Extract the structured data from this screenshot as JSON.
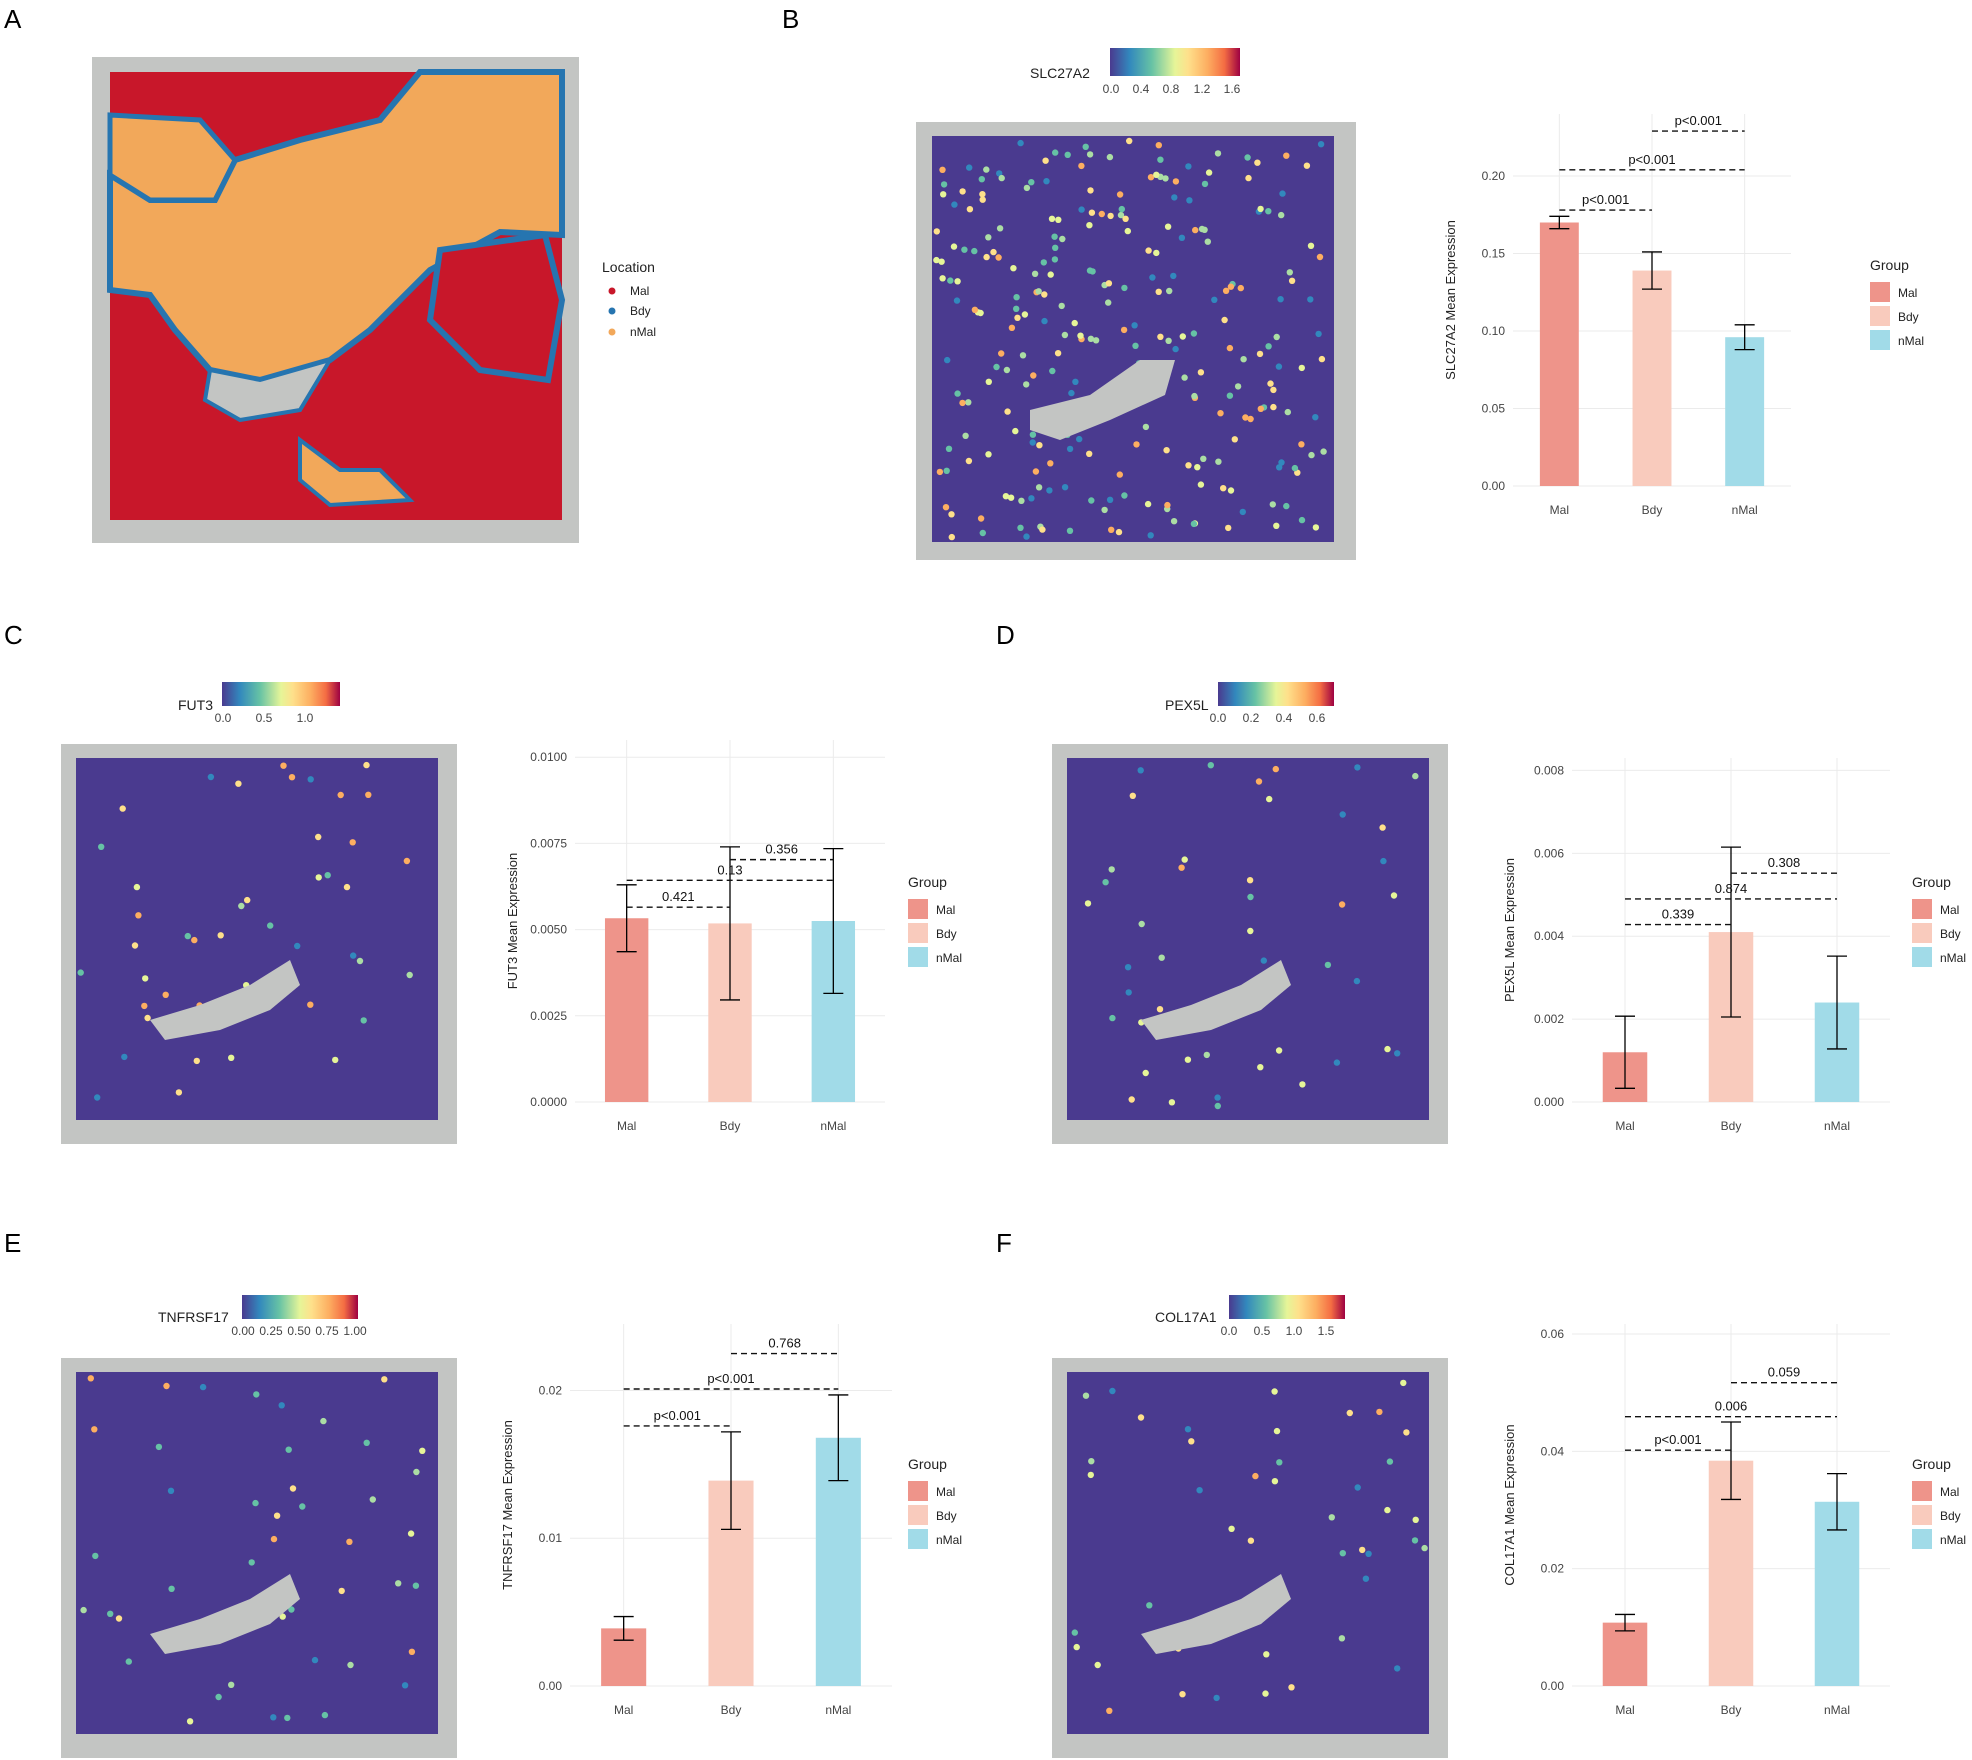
{
  "colors": {
    "Mal": "#ee948a",
    "Bdy": "#f9cbbd",
    "nMal": "#a1dbe8",
    "tissue_bg": "#c3c5c3",
    "spot_low": "#4a3a8f",
    "loc_Mal": "#c8172a",
    "loc_Bdy": "#2675b0",
    "loc_nMal": "#f2a85a"
  },
  "panels": {
    "A": {
      "letter": "A",
      "legend_title": "Location",
      "legend_items": [
        "Mal",
        "Bdy",
        "nMal"
      ]
    },
    "B": {
      "letter": "B",
      "gene": "SLC27A2",
      "colorbar_ticks": [
        "0.0",
        "0.4",
        "0.8",
        "1.2",
        "1.6"
      ]
    },
    "C": {
      "letter": "C",
      "gene": "FUT3",
      "colorbar_ticks": [
        "0.0",
        "0.5",
        "1.0"
      ]
    },
    "D": {
      "letter": "D",
      "gene": "PEX5L",
      "colorbar_ticks": [
        "0.0",
        "0.2",
        "0.4",
        "0.6"
      ]
    },
    "E": {
      "letter": "E",
      "gene": "TNFRSF17",
      "colorbar_ticks": [
        "0.00",
        "0.25",
        "0.50",
        "0.75",
        "1.00"
      ]
    },
    "F": {
      "letter": "F",
      "gene": "COL17A1",
      "colorbar_ticks": [
        "0.0",
        "0.5",
        "1.0",
        "1.5"
      ]
    }
  },
  "chart_data": [
    {
      "panel": "B",
      "type": "bar",
      "title": "",
      "xlabel": "",
      "ylabel": "SLC27A2 Mean Expression",
      "categories": [
        "Mal",
        "Bdy",
        "nMal"
      ],
      "values": [
        0.17,
        0.139,
        0.096
      ],
      "errors": [
        0.004,
        0.012,
        0.008
      ],
      "ylim": [
        0,
        0.24
      ],
      "yticks": [
        "0.00",
        "0.05",
        "0.10",
        "0.15",
        "0.20"
      ],
      "ytick_values": [
        0,
        0.05,
        0.1,
        0.15,
        0.2
      ],
      "legend_title": "Group",
      "comparisons": [
        {
          "from": 0,
          "to": 1,
          "y": 0.178,
          "label": "p<0.001"
        },
        {
          "from": 0,
          "to": 2,
          "y": 0.204,
          "label": "p<0.001"
        },
        {
          "from": 1,
          "to": 2,
          "y": 0.229,
          "label": "p<0.001"
        }
      ]
    },
    {
      "panel": "C",
      "type": "bar",
      "title": "",
      "xlabel": "",
      "ylabel": "FUT3 Mean Expression",
      "categories": [
        "Mal",
        "Bdy",
        "nMal"
      ],
      "values": [
        0.00533,
        0.00518,
        0.00525
      ],
      "errors": [
        0.00097,
        0.00222,
        0.0021
      ],
      "ylim": [
        0,
        0.0105
      ],
      "yticks": [
        "0.0000",
        "0.0025",
        "0.0050",
        "0.0075",
        "0.0100"
      ],
      "ytick_values": [
        0,
        0.0025,
        0.005,
        0.0075,
        0.01
      ],
      "legend_title": "Group",
      "comparisons": [
        {
          "from": 0,
          "to": 1,
          "y": 0.00565,
          "label": "0.421"
        },
        {
          "from": 0,
          "to": 2,
          "y": 0.00643,
          "label": "0.13"
        },
        {
          "from": 1,
          "to": 2,
          "y": 0.00703,
          "label": "0.356"
        }
      ]
    },
    {
      "panel": "D",
      "type": "bar",
      "title": "",
      "xlabel": "",
      "ylabel": "PEX5L Mean Expression",
      "categories": [
        "Mal",
        "Bdy",
        "nMal"
      ],
      "values": [
        0.0012,
        0.0041,
        0.0024
      ],
      "errors": [
        0.00087,
        0.00205,
        0.00112
      ],
      "ylim": [
        0,
        0.0083
      ],
      "yticks": [
        "0.000",
        "0.002",
        "0.004",
        "0.006",
        "0.008"
      ],
      "ytick_values": [
        0,
        0.002,
        0.004,
        0.006,
        0.008
      ],
      "legend_title": "Group",
      "comparisons": [
        {
          "from": 0,
          "to": 1,
          "y": 0.00428,
          "label": "0.339"
        },
        {
          "from": 0,
          "to": 2,
          "y": 0.0049,
          "label": "0.874"
        },
        {
          "from": 1,
          "to": 2,
          "y": 0.00552,
          "label": "0.308"
        }
      ]
    },
    {
      "panel": "E",
      "type": "bar",
      "title": "",
      "xlabel": "",
      "ylabel": "TNFRSF17 Mean Expression",
      "categories": [
        "Mal",
        "Bdy",
        "nMal"
      ],
      "values": [
        0.0039,
        0.0139,
        0.0168
      ],
      "errors": [
        0.0008,
        0.0033,
        0.0029
      ],
      "ylim": [
        0,
        0.0245
      ],
      "yticks": [
        "0.00",
        "0.01",
        "0.02"
      ],
      "ytick_values": [
        0,
        0.01,
        0.02
      ],
      "legend_title": "Group",
      "comparisons": [
        {
          "from": 0,
          "to": 1,
          "y": 0.0176,
          "label": "p<0.001"
        },
        {
          "from": 0,
          "to": 2,
          "y": 0.0201,
          "label": "p<0.001"
        },
        {
          "from": 1,
          "to": 2,
          "y": 0.0225,
          "label": "0.768"
        }
      ]
    },
    {
      "panel": "F",
      "type": "bar",
      "title": "",
      "xlabel": "",
      "ylabel": "COL17A1 Mean Expression",
      "categories": [
        "Mal",
        "Bdy",
        "nMal"
      ],
      "values": [
        0.0108,
        0.0384,
        0.0314
      ],
      "errors": [
        0.0014,
        0.0066,
        0.0048
      ],
      "ylim": [
        0,
        0.0617
      ],
      "yticks": [
        "0.00",
        "0.02",
        "0.04",
        "0.06"
      ],
      "ytick_values": [
        0,
        0.02,
        0.04,
        0.06
      ],
      "legend_title": "Group",
      "comparisons": [
        {
          "from": 0,
          "to": 1,
          "y": 0.0402,
          "label": "p<0.001"
        },
        {
          "from": 0,
          "to": 2,
          "y": 0.0459,
          "label": "0.006"
        },
        {
          "from": 1,
          "to": 2,
          "y": 0.0517,
          "label": "0.059"
        }
      ]
    }
  ]
}
